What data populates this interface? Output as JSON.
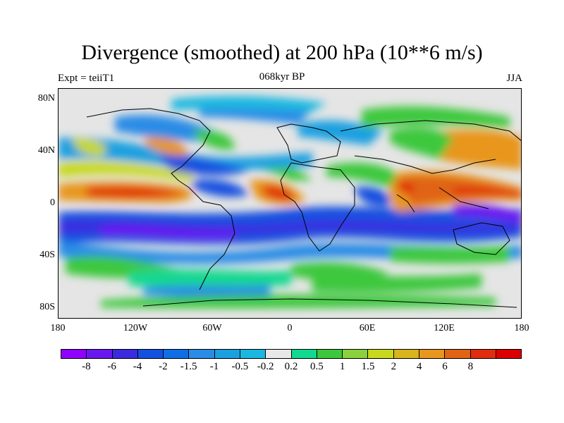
{
  "title": "Divergence (smoothed) at 200 hPa (10**6 m/s)",
  "left_label": "Expt = teiiT1",
  "center_label": "068kyr BP",
  "right_label": "JJA",
  "map": {
    "lat_labels": [
      "80N",
      "40N",
      "0",
      "40S",
      "80S"
    ],
    "lon_labels": [
      "180",
      "120W",
      "60W",
      "0",
      "60E",
      "120E",
      "180"
    ]
  },
  "colorbar": {
    "colors": [
      "#8f00ff",
      "#6a18f0",
      "#3a2be0",
      "#1450e0",
      "#0f6ee6",
      "#2a8ce6",
      "#1aa0e0",
      "#1ab8e0",
      "#e8e8e8",
      "#13d890",
      "#3cc83c",
      "#8ad13c",
      "#c8d81e",
      "#d8b41e",
      "#e8961e",
      "#e06414",
      "#e02d0f",
      "#dc0000"
    ],
    "labels": [
      "-8",
      "-6",
      "-4",
      "-2",
      "-1.5",
      "-1",
      "-0.5",
      "-0.2",
      "0.2",
      "0.5",
      "1",
      "1.5",
      "2",
      "4",
      "6",
      "8"
    ]
  }
}
